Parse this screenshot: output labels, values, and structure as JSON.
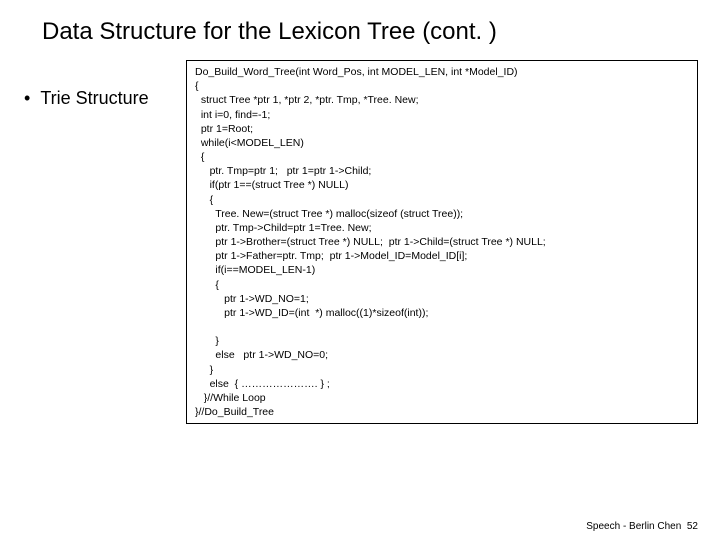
{
  "slide": {
    "title": "Data Structure for the Lexicon Tree (cont. )",
    "bullet": "Trie Structure",
    "code": "Do_Build_Word_Tree(int Word_Pos, int MODEL_LEN, int *Model_ID)\n{\n  struct Tree *ptr 1, *ptr 2, *ptr. Tmp, *Tree. New;\n  int i=0, find=-1;\n  ptr 1=Root;\n  while(i<MODEL_LEN)\n  {\n     ptr. Tmp=ptr 1;   ptr 1=ptr 1->Child;\n     if(ptr 1==(struct Tree *) NULL)\n     {\n       Tree. New=(struct Tree *) malloc(sizeof (struct Tree));\n       ptr. Tmp->Child=ptr 1=Tree. New;\n       ptr 1->Brother=(struct Tree *) NULL;  ptr 1->Child=(struct Tree *) NULL;\n       ptr 1->Father=ptr. Tmp;  ptr 1->Model_ID=Model_ID[i];\n       if(i==MODEL_LEN-1)\n       {\n          ptr 1->WD_NO=1;\n          ptr 1->WD_ID=(int  *) malloc((1)*sizeof(int));\n\n       }\n       else   ptr 1->WD_NO=0;\n     }\n     else  { …………………. } ;\n   }//While Loop\n}//Do_Build_Tree",
    "footer_author": "Speech - Berlin Chen",
    "footer_page": "52"
  },
  "style": {
    "background": "#ffffff",
    "text_color": "#000000",
    "title_fontsize": 24,
    "bullet_fontsize": 18,
    "code_fontsize": 10.5,
    "footer_fontsize": 10,
    "code_border": "#000000"
  }
}
